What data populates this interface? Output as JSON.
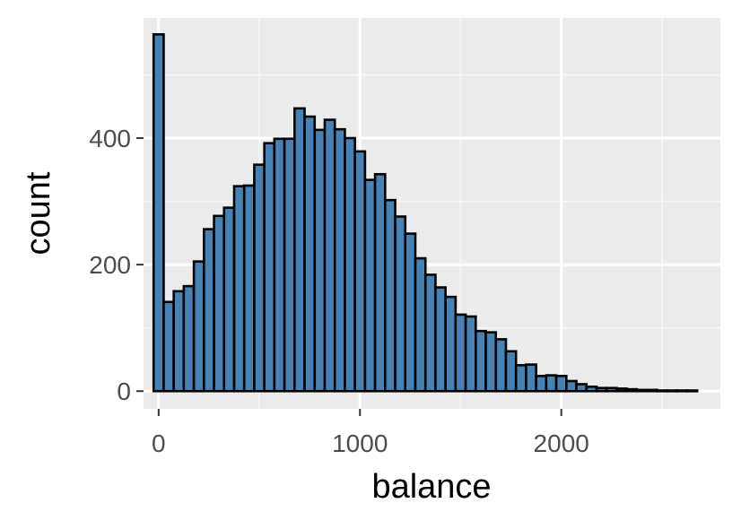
{
  "chart_data": {
    "type": "bar",
    "subtype": "histogram",
    "title": "",
    "xlabel": "balance",
    "ylabel": "count",
    "xlim": [
      -75,
      2790
    ],
    "ylim": [
      -28,
      590
    ],
    "bin_width": 50,
    "bin_starts": [
      -25,
      25,
      75,
      125,
      175,
      225,
      275,
      325,
      375,
      425,
      475,
      525,
      575,
      625,
      675,
      725,
      775,
      825,
      875,
      925,
      975,
      1025,
      1075,
      1125,
      1175,
      1225,
      1275,
      1325,
      1375,
      1425,
      1475,
      1525,
      1575,
      1625,
      1675,
      1725,
      1775,
      1825,
      1875,
      1925,
      1975,
      2025,
      2075,
      2125,
      2175,
      2225,
      2275,
      2325,
      2375,
      2425,
      2475,
      2525,
      2575,
      2625
    ],
    "values": [
      564,
      141,
      158,
      166,
      205,
      256,
      277,
      290,
      324,
      325,
      358,
      392,
      399,
      399,
      447,
      434,
      413,
      429,
      414,
      400,
      379,
      334,
      343,
      302,
      276,
      249,
      210,
      184,
      164,
      149,
      121,
      118,
      95,
      93,
      82,
      63,
      41,
      42,
      24,
      25,
      24,
      16,
      11,
      7,
      5,
      5,
      4,
      3,
      2,
      2,
      1,
      1,
      1,
      1
    ],
    "x_ticks": [
      0,
      1000,
      2000
    ],
    "x_tick_labels": [
      "0",
      "1000",
      "2000"
    ],
    "y_ticks": [
      0,
      200,
      400
    ],
    "y_tick_labels": [
      "0",
      "200",
      "400"
    ],
    "grid": true,
    "legend": "none",
    "colors": {
      "panel_background": "#ebebeb",
      "grid_major": "#ffffff",
      "grid_minor": "#f7f7f7",
      "bar_fill": "#4682b4",
      "bar_outline": "#000000",
      "tick_text": "#4d4d4d",
      "axis_title_text": "#000000"
    }
  }
}
